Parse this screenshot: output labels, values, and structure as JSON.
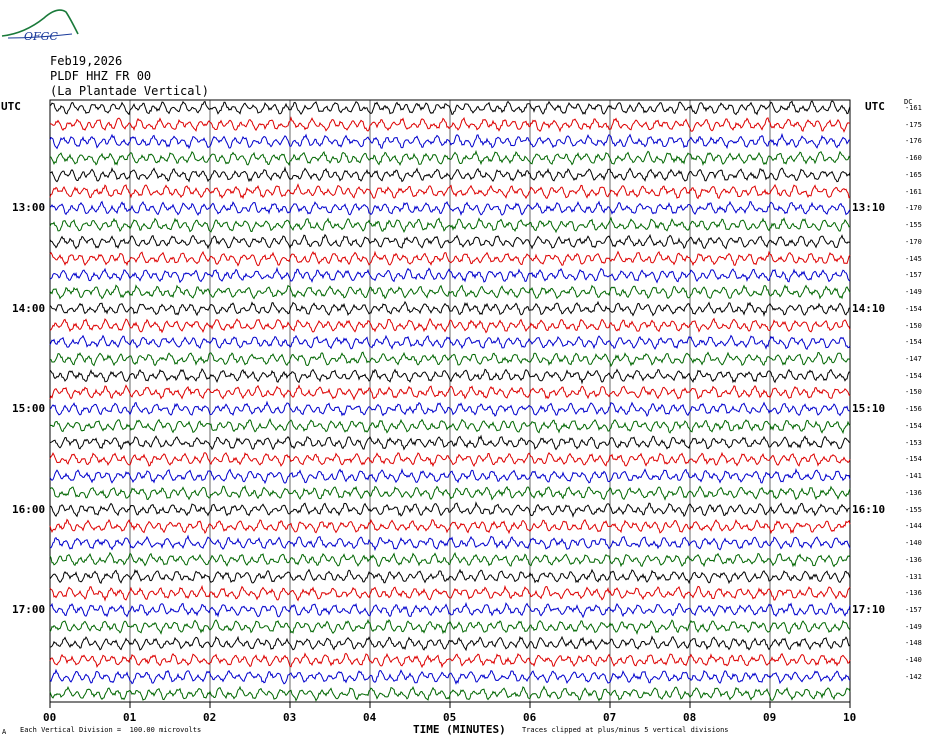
{
  "header": {
    "logo_text": "OFGC",
    "date": "Feb19,2026",
    "channel": "PLDF HHZ FR 00",
    "station": "(La Plantade Vertical)"
  },
  "axis": {
    "left_title": "UTC",
    "right_title": "UTC",
    "dc_title": "DC",
    "x_title": "TIME (MINUTES)"
  },
  "footer": {
    "marker": "A",
    "scale_note": "Each Vertical Division =  100.00 microvolts",
    "clip_note": "Traces clipped at plus/minus 5 vertical divisions"
  },
  "colors": {
    "cycle": [
      "#000000",
      "#dd0000",
      "#0000cc",
      "#006600"
    ],
    "grid": "#000000"
  },
  "chart_data": {
    "type": "line",
    "description_kind": "helicorder",
    "x_ticks": [
      "00",
      "01",
      "02",
      "03",
      "04",
      "05",
      "06",
      "07",
      "08",
      "09",
      "10"
    ],
    "xlim": [
      0,
      10
    ],
    "rows": 36,
    "left_time_labels": [
      {
        "row": 6,
        "label": "13:00"
      },
      {
        "row": 12,
        "label": "14:00"
      },
      {
        "row": 18,
        "label": "15:00"
      },
      {
        "row": 24,
        "label": "16:00"
      },
      {
        "row": 30,
        "label": "17:00"
      }
    ],
    "right_time_labels": [
      {
        "row": 6,
        "label": "13:10"
      },
      {
        "row": 12,
        "label": "14:10"
      },
      {
        "row": 18,
        "label": "15:10"
      },
      {
        "row": 24,
        "label": "16:10"
      },
      {
        "row": 30,
        "label": "17:10"
      }
    ],
    "dc_offsets": [
      "-161",
      "-175",
      "-176",
      "-160",
      "-165",
      "-161",
      "-170",
      "-155",
      "-170",
      "-145",
      "-157",
      "-149",
      "-154",
      "-150",
      "-154",
      "-147",
      "-154",
      "-150",
      "-156",
      "-154",
      "-153",
      "-154",
      "-141",
      "-136",
      "-155",
      "-144",
      "-140",
      "-136",
      "-131",
      "-136",
      "-157",
      "-149",
      "-148",
      "-140",
      "-142"
    ]
  }
}
